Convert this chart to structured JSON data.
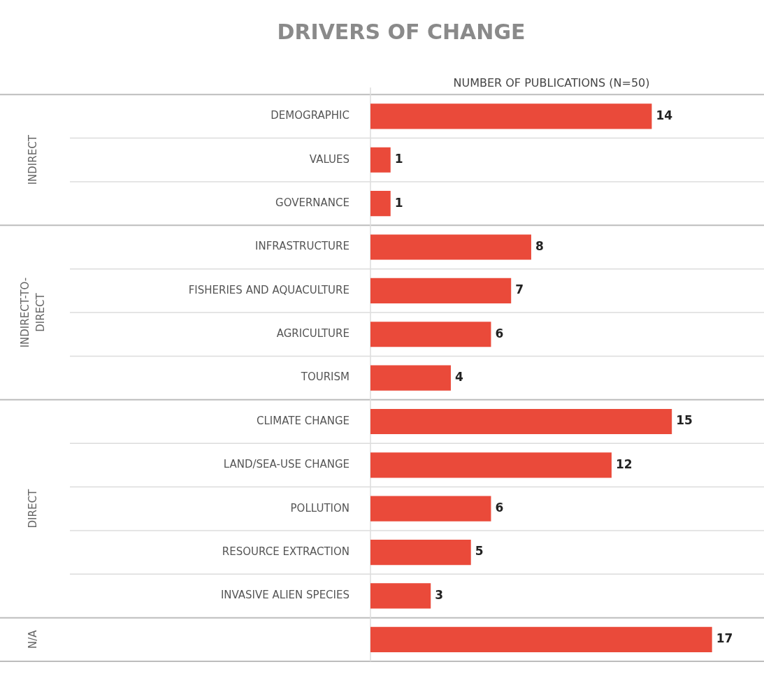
{
  "chart_data": {
    "type": "bar",
    "orientation": "horizontal",
    "title": "DRIVERS OF CHANGE",
    "xlabel": "NUMBER OF PUBLICATIONS (N=50)",
    "categories": [
      "DEMOGRAPHIC",
      "VALUES",
      "GOVERNANCE",
      "INFRASTRUCTURE",
      "FISHERIES AND AQUACULTURE",
      "AGRICULTURE",
      "TOURISM",
      "CLIMATE CHANGE",
      "LAND/SEA-USE CHANGE",
      "POLLUTION",
      "RESOURCE EXTRACTION",
      "INVASIVE ALIEN SPECIES",
      null
    ],
    "values": [
      14,
      1,
      1,
      8,
      7,
      6,
      4,
      15,
      12,
      6,
      5,
      3,
      17
    ],
    "color": "#ea4a3a",
    "data_labels": true,
    "grid": "y",
    "tick_labels": "y",
    "legend": false,
    "annotations": [
      "INDIRECT",
      "INDIRECT-TO-DIRECT",
      "DIRECT",
      "N/A"
    ]
  }
}
